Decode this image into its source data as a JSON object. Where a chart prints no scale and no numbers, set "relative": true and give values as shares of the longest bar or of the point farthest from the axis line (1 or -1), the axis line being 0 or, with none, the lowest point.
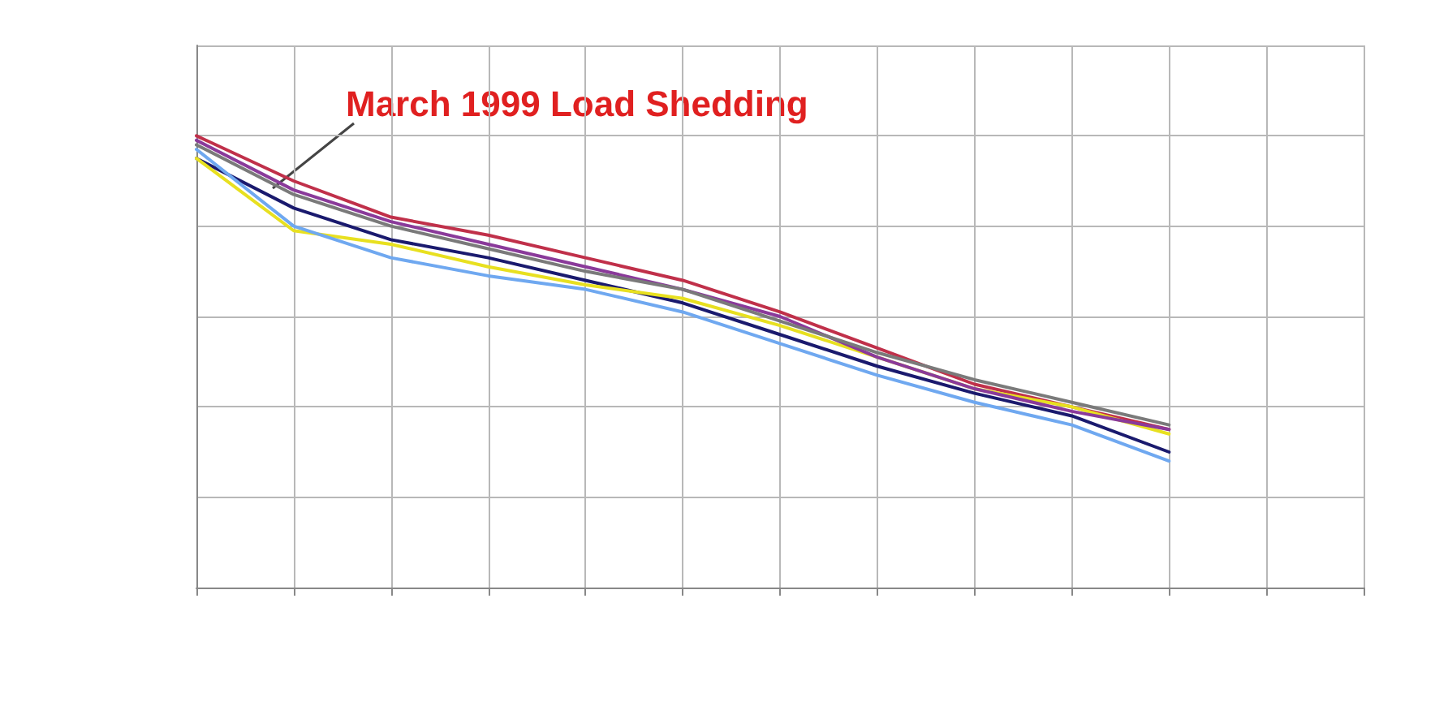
{
  "chart_data": {
    "type": "line",
    "relative": true,
    "grid": true,
    "marker": "none",
    "line_style": "solid",
    "categories": [
      null,
      null,
      null,
      null,
      null,
      null,
      null,
      null,
      null,
      null,
      null,
      null,
      null
    ],
    "annotations": [
      "March 1999 Load Shedding"
    ],
    "series": [
      {
        "color": "#c0304a",
        "values": [
          1.0,
          0.9,
          0.82,
          0.78,
          0.73,
          0.68,
          0.61,
          0.53,
          0.45,
          0.4,
          0.35,
          null,
          null
        ]
      },
      {
        "color": "#1a1a6e",
        "values": [
          0.95,
          0.84,
          0.77,
          0.73,
          0.68,
          0.63,
          0.56,
          0.49,
          0.43,
          0.38,
          0.3,
          null,
          null
        ]
      },
      {
        "color": "#e8e020",
        "values": [
          0.95,
          0.79,
          0.76,
          0.71,
          0.67,
          0.64,
          0.58,
          0.51,
          0.44,
          0.4,
          0.34,
          null,
          null
        ]
      },
      {
        "color": "#6fa8f0",
        "values": [
          0.97,
          0.8,
          0.73,
          0.69,
          0.66,
          0.61,
          0.54,
          0.47,
          0.41,
          0.36,
          0.28,
          null,
          null
        ]
      },
      {
        "color": "#8a3a9a",
        "values": [
          0.99,
          0.88,
          0.81,
          0.76,
          0.71,
          0.66,
          0.6,
          0.51,
          0.44,
          0.39,
          0.35,
          null,
          null
        ]
      },
      {
        "color": "#7a7a7a",
        "values": [
          0.98,
          0.87,
          0.8,
          0.75,
          0.7,
          0.66,
          0.59,
          0.52,
          0.46,
          0.41,
          0.36,
          null,
          null
        ]
      }
    ]
  }
}
